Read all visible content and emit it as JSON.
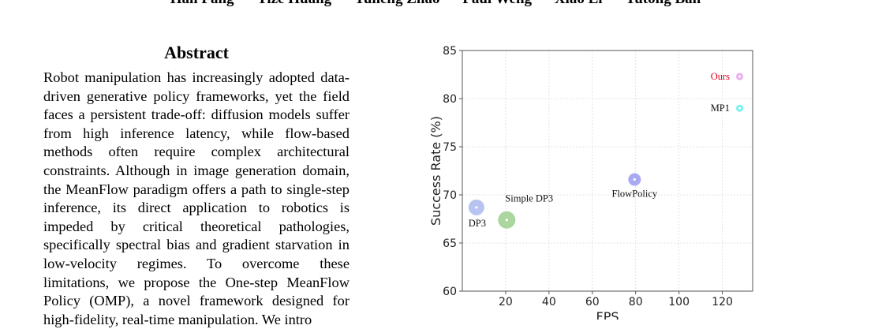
{
  "authors": [
    "Han Fang",
    "Yize Huang",
    "Yuheng Zhao",
    "Paul Weng",
    "Xiao Li",
    "Yutong Ban"
  ],
  "abstract": {
    "title": "Abstract",
    "text": "Robot manipulation has increasingly adopted data-driven generative policy frameworks, yet the field faces a persistent trade-off: diffusion models suffer from high inference latency, while flow-based methods often require complex architectural constraints. Although in image generation domain, the MeanFlow paradigm offers a path to single-step inference, its direct application to robotics is impeded by critical theoretical pathologies, specifically spectral bias and gradient starvation in low-velocity regimes. To overcome these limitations, we propose the One-step MeanFlow Policy (OMP), a novel framework designed for high-fidelity, real-time manipulation. We intro"
  },
  "chart_data": {
    "type": "scatter",
    "xlabel": "FPS",
    "ylabel": "Success Rate (%)",
    "xlim": [
      0,
      134
    ],
    "ylim": [
      60,
      85
    ],
    "xticks": [
      20,
      40,
      60,
      80,
      100,
      120
    ],
    "yticks": [
      60,
      65,
      70,
      75,
      80,
      85
    ],
    "grid": true,
    "points": [
      {
        "label": "DP3",
        "x": 6.5,
        "y": 68.7,
        "color": "#aab8ee",
        "label_pos": "below"
      },
      {
        "label": "Simple DP3",
        "x": 20.5,
        "y": 67.4,
        "color": "#9ccf8f",
        "label_pos": "above-right"
      },
      {
        "label": "FlowPolicy",
        "x": 79.5,
        "y": 71.6,
        "color": "#9b9bf0",
        "label_pos": "below"
      },
      {
        "label": "MP1",
        "x": 128,
        "y": 79,
        "color": "#5ff0f0",
        "label_pos": "left"
      },
      {
        "label": "Ours",
        "x": 128,
        "y": 82.3,
        "color": "#e99ae8",
        "label_pos": "left",
        "label_color": "#e0001b"
      }
    ]
  }
}
